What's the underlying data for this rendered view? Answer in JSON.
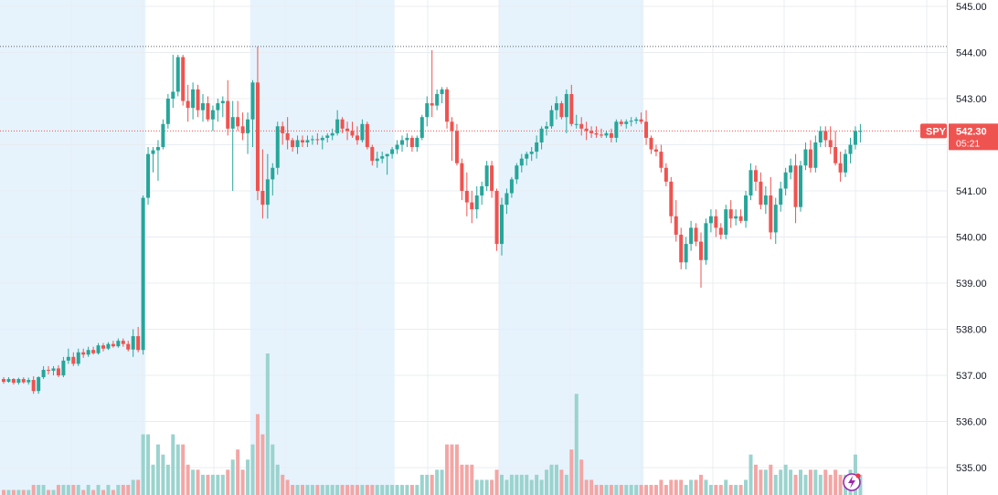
{
  "chart_data": {
    "type": "candlestick",
    "symbol": "SPY",
    "last_price": "542.30",
    "countdown": "05:21",
    "y_axis": {
      "range": [
        534.6,
        545.1
      ],
      "ticks": [
        "545.00",
        "544.00",
        "543.00",
        "542.00",
        "541.00",
        "540.00",
        "539.00",
        "538.00",
        "537.00",
        "536.00",
        "535.00"
      ]
    },
    "reference_line": 544.13,
    "session_bands": [
      {
        "type": "extended",
        "start": 0,
        "end": 29
      },
      {
        "type": "regular",
        "start": 29,
        "end": 50
      },
      {
        "type": "extended",
        "start": 50,
        "end": 79
      },
      {
        "type": "regular",
        "start": 79,
        "end": 100
      },
      {
        "type": "extended",
        "start": 100,
        "end": 129
      },
      {
        "type": "regular",
        "start": 129,
        "end": 170
      }
    ],
    "candles": [
      [
        536.92,
        536.96,
        536.82,
        536.86,
        0.01
      ],
      [
        536.86,
        536.96,
        536.84,
        536.92,
        0.01
      ],
      [
        536.92,
        536.94,
        536.8,
        536.84,
        0.01
      ],
      [
        536.84,
        536.95,
        536.8,
        536.92,
        0.01
      ],
      [
        536.92,
        536.96,
        536.82,
        536.85,
        0.01
      ],
      [
        536.85,
        536.95,
        536.8,
        536.9,
        0.01
      ],
      [
        536.9,
        536.98,
        536.6,
        536.66,
        0.02
      ],
      [
        536.66,
        536.98,
        536.6,
        536.96,
        0.02
      ],
      [
        536.96,
        537.2,
        536.92,
        537.12,
        0.02
      ],
      [
        537.12,
        537.2,
        537.02,
        537.1,
        0.01
      ],
      [
        537.1,
        537.2,
        537.0,
        537.15,
        0.01
      ],
      [
        537.15,
        537.22,
        536.96,
        537.0,
        0.02
      ],
      [
        537.0,
        537.4,
        536.96,
        537.32,
        0.02
      ],
      [
        537.32,
        537.58,
        537.25,
        537.4,
        0.02
      ],
      [
        537.4,
        537.5,
        537.2,
        537.25,
        0.02
      ],
      [
        537.25,
        537.58,
        537.2,
        537.5,
        0.02
      ],
      [
        537.5,
        537.58,
        537.38,
        537.45,
        0.01
      ],
      [
        537.45,
        537.62,
        537.4,
        537.55,
        0.02
      ],
      [
        537.55,
        537.62,
        537.45,
        537.48,
        0.01
      ],
      [
        537.48,
        537.7,
        537.45,
        537.65,
        0.02
      ],
      [
        537.65,
        537.7,
        537.52,
        537.58,
        0.01
      ],
      [
        537.58,
        537.72,
        537.55,
        537.68,
        0.02
      ],
      [
        537.68,
        537.75,
        537.6,
        537.63,
        0.01
      ],
      [
        537.63,
        537.8,
        537.6,
        537.75,
        0.02
      ],
      [
        537.75,
        537.8,
        537.62,
        537.68,
        0.02
      ],
      [
        537.68,
        537.75,
        537.52,
        537.56,
        0.02
      ],
      [
        537.56,
        538.0,
        537.4,
        537.85,
        0.03
      ],
      [
        537.85,
        538.05,
        537.5,
        537.55,
        0.03
      ],
      [
        537.55,
        540.9,
        537.45,
        540.85,
        0.12
      ],
      [
        540.85,
        541.95,
        540.7,
        541.8,
        0.12
      ],
      [
        541.8,
        541.95,
        541.4,
        541.88,
        0.06
      ],
      [
        541.88,
        542.1,
        541.22,
        541.95,
        0.1
      ],
      [
        541.95,
        542.55,
        541.9,
        542.45,
        0.08
      ],
      [
        542.45,
        543.1,
        542.35,
        543.0,
        0.06
      ],
      [
        543.0,
        543.95,
        542.8,
        543.15,
        0.12
      ],
      [
        543.15,
        543.95,
        543.05,
        543.9,
        0.1
      ],
      [
        543.9,
        543.95,
        542.85,
        542.95,
        0.1
      ],
      [
        542.95,
        543.3,
        542.5,
        542.8,
        0.06
      ],
      [
        542.8,
        543.35,
        542.55,
        543.2,
        0.05
      ],
      [
        543.2,
        543.3,
        542.6,
        542.75,
        0.05
      ],
      [
        542.75,
        543.1,
        542.5,
        542.9,
        0.04
      ],
      [
        542.9,
        543.05,
        542.5,
        542.55,
        0.04
      ],
      [
        542.55,
        542.85,
        542.3,
        542.75,
        0.04
      ],
      [
        542.75,
        543.0,
        542.5,
        542.9,
        0.04
      ],
      [
        542.9,
        543.05,
        542.6,
        542.95,
        0.04
      ],
      [
        542.95,
        543.4,
        542.2,
        542.35,
        0.05
      ],
      [
        542.35,
        542.95,
        541.0,
        542.6,
        0.07
      ],
      [
        542.6,
        542.95,
        542.3,
        542.4,
        0.09
      ],
      [
        542.4,
        542.7,
        542.1,
        542.25,
        0.05
      ],
      [
        542.25,
        542.7,
        541.8,
        542.55,
        0.07
      ],
      [
        542.55,
        543.4,
        541.95,
        543.35,
        0.1
      ],
      [
        543.35,
        544.13,
        540.8,
        541.0,
        0.16
      ],
      [
        541.0,
        541.9,
        540.4,
        540.7,
        0.12
      ],
      [
        540.7,
        541.8,
        540.4,
        541.25,
        0.28
      ],
      [
        541.25,
        541.6,
        540.9,
        541.5,
        0.1
      ],
      [
        541.5,
        542.5,
        541.35,
        542.4,
        0.06
      ],
      [
        542.4,
        542.5,
        542.0,
        542.25,
        0.04
      ],
      [
        542.25,
        542.6,
        541.9,
        542.1,
        0.03
      ],
      [
        542.1,
        542.15,
        541.85,
        541.95,
        0.02
      ],
      [
        541.95,
        542.2,
        541.8,
        542.1,
        0.02
      ],
      [
        542.1,
        542.2,
        541.95,
        542.05,
        0.02
      ],
      [
        542.05,
        542.2,
        541.95,
        542.1,
        0.02
      ],
      [
        542.1,
        542.2,
        542.0,
        542.12,
        0.02
      ],
      [
        542.12,
        542.25,
        542.0,
        542.1,
        0.02
      ],
      [
        542.1,
        542.2,
        541.9,
        542.15,
        0.02
      ],
      [
        542.15,
        542.25,
        542.05,
        542.2,
        0.02
      ],
      [
        542.2,
        542.35,
        542.1,
        542.25,
        0.02
      ],
      [
        542.25,
        542.75,
        542.2,
        542.55,
        0.02
      ],
      [
        542.55,
        542.6,
        542.25,
        542.35,
        0.02
      ],
      [
        542.35,
        542.5,
        542.1,
        542.3,
        0.02
      ],
      [
        542.3,
        542.5,
        542.15,
        542.2,
        0.02
      ],
      [
        542.2,
        542.4,
        542.0,
        542.1,
        0.02
      ],
      [
        542.1,
        542.55,
        542.05,
        542.45,
        0.02
      ],
      [
        542.45,
        542.5,
        541.9,
        541.95,
        0.02
      ],
      [
        541.95,
        542.0,
        541.55,
        541.65,
        0.02
      ],
      [
        541.65,
        541.85,
        541.5,
        541.7,
        0.02
      ],
      [
        541.7,
        541.85,
        541.6,
        541.75,
        0.02
      ],
      [
        541.75,
        541.8,
        541.35,
        541.8,
        0.02
      ],
      [
        541.8,
        541.95,
        541.7,
        541.9,
        0.02
      ],
      [
        541.9,
        542.1,
        541.8,
        542.0,
        0.02
      ],
      [
        542.0,
        542.2,
        541.85,
        542.1,
        0.02
      ],
      [
        542.1,
        542.25,
        541.95,
        542.15,
        0.02
      ],
      [
        542.15,
        542.2,
        541.85,
        541.95,
        0.02
      ],
      [
        541.95,
        542.2,
        541.85,
        542.15,
        0.02
      ],
      [
        542.15,
        542.65,
        542.1,
        542.6,
        0.04
      ],
      [
        542.6,
        543.05,
        542.4,
        542.9,
        0.04
      ],
      [
        542.9,
        544.05,
        542.6,
        542.85,
        0.04
      ],
      [
        542.85,
        543.2,
        542.75,
        543.1,
        0.05
      ],
      [
        543.1,
        543.25,
        542.9,
        543.2,
        0.05
      ],
      [
        543.2,
        543.25,
        542.35,
        542.5,
        0.1
      ],
      [
        542.5,
        542.6,
        541.65,
        542.3,
        0.1
      ],
      [
        542.3,
        542.45,
        541.55,
        541.6,
        0.1
      ],
      [
        541.6,
        541.7,
        540.8,
        541.0,
        0.06
      ],
      [
        541.0,
        541.4,
        540.45,
        540.75,
        0.06
      ],
      [
        540.75,
        541.0,
        540.3,
        540.6,
        0.06
      ],
      [
        540.6,
        541.1,
        540.4,
        540.9,
        0.03
      ],
      [
        540.9,
        541.2,
        540.7,
        541.1,
        0.03
      ],
      [
        541.1,
        541.65,
        541.0,
        541.55,
        0.03
      ],
      [
        541.55,
        541.65,
        540.85,
        541.0,
        0.03
      ],
      [
        541.0,
        541.05,
        539.7,
        539.85,
        0.05
      ],
      [
        539.85,
        540.85,
        539.6,
        540.7,
        0.04
      ],
      [
        540.7,
        541.05,
        540.5,
        540.95,
        0.03
      ],
      [
        540.95,
        541.3,
        540.85,
        541.25,
        0.04
      ],
      [
        541.25,
        541.6,
        541.15,
        541.55,
        0.04
      ],
      [
        541.55,
        541.8,
        541.4,
        541.7,
        0.04
      ],
      [
        541.7,
        541.85,
        541.55,
        541.8,
        0.04
      ],
      [
        541.8,
        541.95,
        541.65,
        541.85,
        0.03
      ],
      [
        541.85,
        542.2,
        541.7,
        542.05,
        0.04
      ],
      [
        542.05,
        542.4,
        541.9,
        542.35,
        0.03
      ],
      [
        542.35,
        542.5,
        542.2,
        542.4,
        0.05
      ],
      [
        542.4,
        542.85,
        542.35,
        542.75,
        0.06
      ],
      [
        542.75,
        543.05,
        542.55,
        542.9,
        0.06
      ],
      [
        542.9,
        542.95,
        542.55,
        542.6,
        0.05
      ],
      [
        542.6,
        543.2,
        542.25,
        543.1,
        0.04
      ],
      [
        543.1,
        543.3,
        542.4,
        542.45,
        0.09
      ],
      [
        542.45,
        542.65,
        542.35,
        542.45,
        0.2
      ],
      [
        542.45,
        542.6,
        542.2,
        542.35,
        0.07
      ],
      [
        542.35,
        542.5,
        542.1,
        542.3,
        0.03
      ],
      [
        542.3,
        542.4,
        542.15,
        542.25,
        0.03
      ],
      [
        542.25,
        542.4,
        542.15,
        542.22,
        0.02
      ],
      [
        542.22,
        542.35,
        542.15,
        542.2,
        0.02
      ],
      [
        542.2,
        542.3,
        542.15,
        542.25,
        0.02
      ],
      [
        542.25,
        542.35,
        542.05,
        542.15,
        0.02
      ],
      [
        542.15,
        542.55,
        542.05,
        542.5,
        0.02
      ],
      [
        542.5,
        542.55,
        542.4,
        542.45,
        0.02
      ],
      [
        542.45,
        542.55,
        542.35,
        542.5,
        0.02
      ],
      [
        542.5,
        542.6,
        542.4,
        542.52,
        0.02
      ],
      [
        542.52,
        542.6,
        542.45,
        542.55,
        0.02
      ],
      [
        542.55,
        542.7,
        542.45,
        542.5,
        0.02
      ],
      [
        542.5,
        542.75,
        542.0,
        542.15,
        0.02
      ],
      [
        542.15,
        542.2,
        541.8,
        541.9,
        0.02
      ],
      [
        541.9,
        542.0,
        541.75,
        541.85,
        0.02
      ],
      [
        541.85,
        542.0,
        541.4,
        541.5,
        0.03
      ],
      [
        541.5,
        541.6,
        541.1,
        541.2,
        0.02
      ],
      [
        541.2,
        541.3,
        540.3,
        540.45,
        0.03
      ],
      [
        540.45,
        540.8,
        539.9,
        540.05,
        0.03
      ],
      [
        540.05,
        540.2,
        539.3,
        539.45,
        0.03
      ],
      [
        539.45,
        540.0,
        539.3,
        539.85,
        0.02
      ],
      [
        539.85,
        540.35,
        539.7,
        540.2,
        0.03
      ],
      [
        540.2,
        540.3,
        539.8,
        539.9,
        0.03
      ],
      [
        539.9,
        540.1,
        538.9,
        539.5,
        0.04
      ],
      [
        539.5,
        540.4,
        539.4,
        540.3,
        0.03
      ],
      [
        540.3,
        540.6,
        540.1,
        540.45,
        0.02
      ],
      [
        540.45,
        540.6,
        540.0,
        540.2,
        0.02
      ],
      [
        540.2,
        540.3,
        539.95,
        540.05,
        0.02
      ],
      [
        540.05,
        540.7,
        539.95,
        540.6,
        0.03
      ],
      [
        540.6,
        540.8,
        540.2,
        540.4,
        0.02
      ],
      [
        540.4,
        540.6,
        540.25,
        540.45,
        0.02
      ],
      [
        540.45,
        540.6,
        540.3,
        540.35,
        0.02
      ],
      [
        540.35,
        541.0,
        540.2,
        540.9,
        0.03
      ],
      [
        540.9,
        541.6,
        540.8,
        541.45,
        0.08
      ],
      [
        541.45,
        541.55,
        541.0,
        541.2,
        0.06
      ],
      [
        541.2,
        541.4,
        540.6,
        540.7,
        0.05
      ],
      [
        540.7,
        541.1,
        540.5,
        540.9,
        0.05
      ],
      [
        540.9,
        541.3,
        539.95,
        540.1,
        0.06
      ],
      [
        540.1,
        540.85,
        539.85,
        540.7,
        0.04
      ],
      [
        540.7,
        541.2,
        540.55,
        541.05,
        0.05
      ],
      [
        541.05,
        541.5,
        540.9,
        541.4,
        0.06
      ],
      [
        541.4,
        541.7,
        541.25,
        541.55,
        0.05
      ],
      [
        541.55,
        541.8,
        540.3,
        540.65,
        0.04
      ],
      [
        540.65,
        541.65,
        540.55,
        541.55,
        0.05
      ],
      [
        541.55,
        542.05,
        541.45,
        541.9,
        0.04
      ],
      [
        541.9,
        542.1,
        541.4,
        541.5,
        0.05
      ],
      [
        541.5,
        542.2,
        541.4,
        542.05,
        0.05
      ],
      [
        542.05,
        542.4,
        541.95,
        542.3,
        0.04
      ],
      [
        542.3,
        542.4,
        541.95,
        542.1,
        0.05
      ],
      [
        542.1,
        542.4,
        541.8,
        541.95,
        0.04
      ],
      [
        541.95,
        542.3,
        541.55,
        541.6,
        0.05
      ],
      [
        541.6,
        541.85,
        541.2,
        541.4,
        0.04
      ],
      [
        541.4,
        541.9,
        541.3,
        541.8,
        0.04
      ],
      [
        541.8,
        542.15,
        541.6,
        542.0,
        0.05
      ],
      [
        542.0,
        542.4,
        541.9,
        542.3,
        0.08
      ],
      [
        542.3,
        542.45,
        542.05,
        542.3,
        0.04
      ]
    ]
  }
}
